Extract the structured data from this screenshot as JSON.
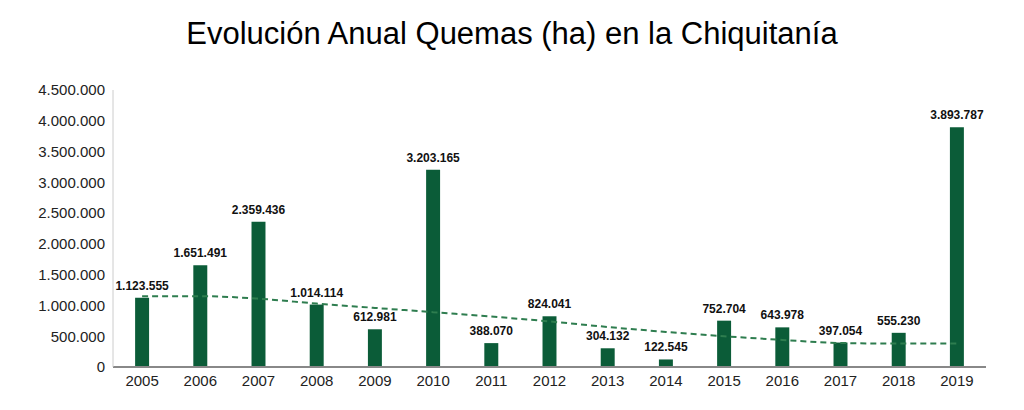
{
  "chart_data": {
    "type": "bar",
    "title": "Evolución Anual Quemas (ha) en la Chiquitanía",
    "categories": [
      "2005",
      "2006",
      "2007",
      "2008",
      "2009",
      "2010",
      "2011",
      "2012",
      "2013",
      "2014",
      "2015",
      "2016",
      "2017",
      "2018",
      "2019"
    ],
    "values": [
      1123555,
      1651491,
      2359436,
      1014114,
      612981,
      3203165,
      388070,
      824041,
      304132,
      122545,
      752704,
      643978,
      397054,
      555230,
      3893787
    ],
    "value_labels": [
      "1.123.555",
      "1.651.491",
      "2.359.436",
      "1.014.114",
      "612.981",
      "3.203.165",
      "388.070",
      "824.041",
      "304.132",
      "122.545",
      "752.704",
      "643.978",
      "397.054",
      "555.230",
      "3.893.787"
    ],
    "color": "#0b5c38",
    "data_labels": true,
    "grid": false,
    "ylim": [
      0,
      4500000
    ],
    "yticks": [
      0,
      {
        "value": 500000,
        "label": "500.000"
      },
      {
        "value": 1000000,
        "label": "1.000.000"
      },
      {
        "value": 1500000,
        "label": "1.500.000"
      },
      {
        "value": 2000000,
        "label": "2.000.000"
      },
      {
        "value": 2500000,
        "label": "2.500.000"
      },
      {
        "value": 3000000,
        "label": "3.000.000"
      },
      {
        "value": 3500000,
        "label": "3.500.000"
      },
      {
        "value": 4000000,
        "label": "4.000.000"
      },
      {
        "value": 4500000,
        "label": "4.500.000"
      }
    ],
    "trend": {
      "type": "line",
      "line_style": "dashed",
      "color": "#2e7d4f",
      "values": [
        1150000,
        1150000,
        1110000,
        1030000,
        960000,
        890000,
        820000,
        740000,
        650000,
        570000,
        500000,
        440000,
        390000,
        380000,
        380000
      ]
    }
  }
}
